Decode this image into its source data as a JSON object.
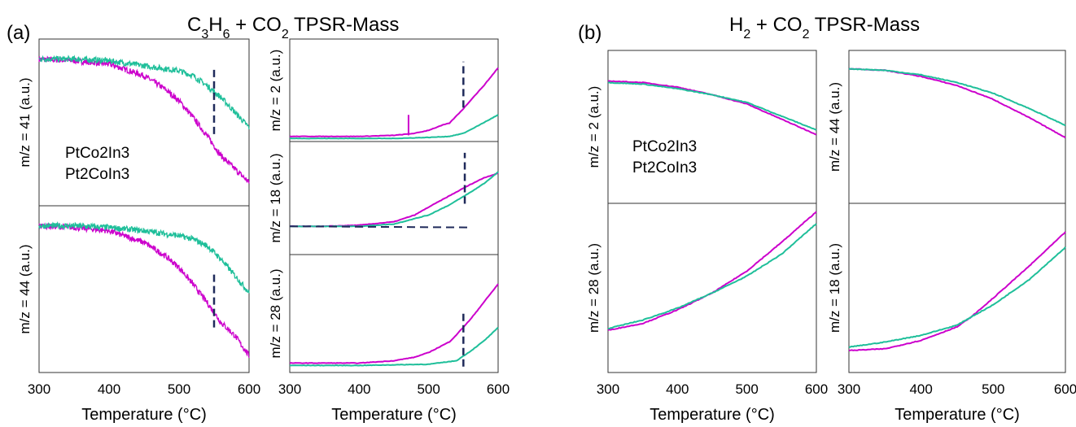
{
  "panels": {
    "a": {
      "letter": "(a)",
      "title_main": "C",
      "title_sub1": "3",
      "title_mid1": "H",
      "title_sub2": "6",
      "title_mid2": " + CO",
      "title_sub3": "2",
      "title_end": " TPSR-Mass"
    },
    "b": {
      "letter": "(b)",
      "title_main": "H",
      "title_sub1": "2",
      "title_mid": " + CO",
      "title_sub2": "2",
      "title_end": " TPSR-Mass"
    }
  },
  "colors": {
    "PtCo2In3": "#cc00cc",
    "Pt2CoIn3": "#1fbf9a",
    "marker": "#1f2a5a"
  },
  "chart_data": [
    {
      "id": "a-41",
      "type": "line",
      "ylabel": "m/z = 41 (a.u.)",
      "xlim": [
        300,
        600
      ],
      "ylim": [
        0,
        1
      ],
      "show_xticks": false,
      "xlabel": "",
      "legend": [
        "PtCo2In3",
        "Pt2CoIn3"
      ],
      "series": [
        {
          "name": "PtCo2In3",
          "x": [
            300,
            350,
            400,
            450,
            480,
            500,
            520,
            540,
            560,
            580,
            600
          ],
          "y": [
            0.88,
            0.87,
            0.85,
            0.78,
            0.7,
            0.63,
            0.53,
            0.42,
            0.3,
            0.22,
            0.14
          ]
        },
        {
          "name": "Pt2CoIn3",
          "x": [
            300,
            350,
            400,
            450,
            500,
            520,
            540,
            560,
            580,
            600
          ],
          "y": [
            0.88,
            0.88,
            0.87,
            0.84,
            0.81,
            0.78,
            0.72,
            0.65,
            0.56,
            0.47
          ]
        }
      ],
      "vline": {
        "x": 550,
        "y": [
          0.43,
          0.83
        ]
      }
    },
    {
      "id": "a-44",
      "type": "line",
      "ylabel": "m/z = 44 (a.u.)",
      "xlim": [
        300,
        600
      ],
      "ylim": [
        0,
        1
      ],
      "show_xticks": true,
      "xticks": [
        300,
        400,
        500,
        600
      ],
      "xlabel": "Temperature (°C)",
      "series": [
        {
          "name": "PtCo2In3",
          "x": [
            300,
            350,
            400,
            450,
            480,
            500,
            520,
            540,
            560,
            580,
            600
          ],
          "y": [
            0.88,
            0.87,
            0.85,
            0.78,
            0.7,
            0.63,
            0.53,
            0.42,
            0.3,
            0.22,
            0.1
          ]
        },
        {
          "name": "Pt2CoIn3",
          "x": [
            300,
            350,
            400,
            450,
            500,
            520,
            540,
            560,
            580,
            600
          ],
          "y": [
            0.88,
            0.88,
            0.87,
            0.85,
            0.82,
            0.8,
            0.76,
            0.68,
            0.58,
            0.48
          ]
        }
      ],
      "vline": {
        "x": 550,
        "y": [
          0.27,
          0.6
        ]
      }
    },
    {
      "id": "a-2",
      "type": "line",
      "ylabel": "m/z = 2 (a.u.)",
      "xlim": [
        300,
        600
      ],
      "ylim": [
        0,
        1
      ],
      "show_xticks": false,
      "xlabel": "",
      "series": [
        {
          "name": "PtCo2In3",
          "x": [
            300,
            350,
            400,
            450,
            480,
            500,
            520,
            530,
            540,
            550,
            560,
            580,
            600
          ],
          "y": [
            0.05,
            0.05,
            0.05,
            0.06,
            0.08,
            0.11,
            0.16,
            0.18,
            0.25,
            0.32,
            0.4,
            0.55,
            0.72
          ]
        },
        {
          "name": "Pt2CoIn3",
          "x": [
            300,
            400,
            450,
            500,
            530,
            550,
            570,
            600
          ],
          "y": [
            0.03,
            0.03,
            0.03,
            0.04,
            0.05,
            0.08,
            0.15,
            0.26
          ]
        }
      ],
      "spike": {
        "x": 471,
        "y": [
          0.06,
          0.26
        ]
      },
      "vline": {
        "x": 550,
        "y": [
          0.33,
          0.78
        ]
      }
    },
    {
      "id": "a-18",
      "type": "line",
      "ylabel": "m/z = 18 (a.u.)",
      "xlim": [
        300,
        600
      ],
      "ylim": [
        0,
        1
      ],
      "show_xticks": false,
      "xlabel": "",
      "series": [
        {
          "name": "PtCo2In3",
          "x": [
            300,
            350,
            400,
            450,
            480,
            500,
            530,
            560,
            580,
            600
          ],
          "y": [
            0.25,
            0.25,
            0.26,
            0.29,
            0.35,
            0.42,
            0.52,
            0.62,
            0.68,
            0.72
          ]
        },
        {
          "name": "Pt2CoIn3",
          "x": [
            300,
            350,
            400,
            450,
            500,
            530,
            560,
            580,
            600
          ],
          "y": [
            0.25,
            0.25,
            0.25,
            0.27,
            0.35,
            0.44,
            0.55,
            0.63,
            0.73
          ]
        }
      ],
      "baseline": {
        "x": [
          300,
          560
        ],
        "y": [
          0.25,
          0.24
        ]
      },
      "vline": {
        "x": 552,
        "y": [
          0.45,
          0.9
        ]
      }
    },
    {
      "id": "a-28",
      "type": "line",
      "ylabel": "m/z = 28 (a.u.)",
      "xlim": [
        300,
        600
      ],
      "ylim": [
        0,
        1
      ],
      "show_xticks": true,
      "xticks": [
        300,
        400,
        500,
        600
      ],
      "xlabel": "Temperature (°C)",
      "series": [
        {
          "name": "PtCo2In3",
          "x": [
            300,
            400,
            450,
            480,
            500,
            520,
            530,
            540,
            560,
            580,
            600
          ],
          "y": [
            0.08,
            0.08,
            0.1,
            0.13,
            0.17,
            0.23,
            0.26,
            0.32,
            0.45,
            0.6,
            0.75
          ]
        },
        {
          "name": "Pt2CoIn3",
          "x": [
            300,
            400,
            500,
            540,
            560,
            580,
            600
          ],
          "y": [
            0.06,
            0.06,
            0.07,
            0.1,
            0.18,
            0.27,
            0.38
          ]
        }
      ],
      "vline": {
        "x": 550,
        "y": [
          0.05,
          0.52
        ]
      }
    },
    {
      "id": "b-2",
      "type": "line",
      "ylabel": "m/z = 2 (a.u.)",
      "xlim": [
        300,
        600
      ],
      "ylim": [
        0,
        1
      ],
      "show_xticks": false,
      "xlabel": "",
      "legend": [
        "PtCo2In3",
        "Pt2CoIn3"
      ],
      "series": [
        {
          "name": "PtCo2In3",
          "x": [
            300,
            350,
            400,
            450,
            500,
            550,
            600
          ],
          "y": [
            0.8,
            0.79,
            0.76,
            0.71,
            0.65,
            0.55,
            0.45
          ]
        },
        {
          "name": "Pt2CoIn3",
          "x": [
            300,
            350,
            400,
            450,
            500,
            550,
            600
          ],
          "y": [
            0.79,
            0.78,
            0.75,
            0.71,
            0.66,
            0.57,
            0.48
          ]
        }
      ]
    },
    {
      "id": "b-28",
      "type": "line",
      "ylabel": "m/z = 28 (a.u.)",
      "xlim": [
        300,
        600
      ],
      "ylim": [
        0,
        1
      ],
      "show_xticks": true,
      "xticks": [
        300,
        400,
        500,
        600
      ],
      "xlabel": "Temperature (°C)",
      "series": [
        {
          "name": "PtCo2In3",
          "x": [
            300,
            350,
            400,
            450,
            500,
            550,
            600
          ],
          "y": [
            0.25,
            0.29,
            0.37,
            0.47,
            0.6,
            0.77,
            0.95
          ]
        },
        {
          "name": "Pt2CoIn3",
          "x": [
            300,
            350,
            400,
            450,
            500,
            550,
            600
          ],
          "y": [
            0.26,
            0.31,
            0.38,
            0.47,
            0.57,
            0.7,
            0.88
          ]
        }
      ]
    },
    {
      "id": "b-44",
      "type": "line",
      "ylabel": "m/z = 44 (a.u.)",
      "xlim": [
        300,
        600
      ],
      "ylim": [
        0,
        1
      ],
      "show_xticks": false,
      "xlabel": "",
      "series": [
        {
          "name": "PtCo2In3",
          "x": [
            300,
            350,
            400,
            450,
            500,
            550,
            600
          ],
          "y": [
            0.88,
            0.87,
            0.83,
            0.77,
            0.68,
            0.56,
            0.43
          ]
        },
        {
          "name": "Pt2CoIn3",
          "x": [
            300,
            350,
            400,
            450,
            500,
            550,
            600
          ],
          "y": [
            0.88,
            0.87,
            0.84,
            0.79,
            0.72,
            0.62,
            0.51
          ]
        }
      ]
    },
    {
      "id": "b-18",
      "type": "line",
      "ylabel": "m/z = 18 (a.u.)",
      "xlim": [
        300,
        600
      ],
      "ylim": [
        0,
        1
      ],
      "show_xticks": true,
      "xticks": [
        300,
        400,
        500,
        600
      ],
      "xlabel": "Temperature (°C)",
      "series": [
        {
          "name": "PtCo2In3",
          "x": [
            300,
            350,
            400,
            450,
            470,
            500,
            550,
            600
          ],
          "y": [
            0.13,
            0.14,
            0.19,
            0.27,
            0.33,
            0.44,
            0.63,
            0.83
          ]
        },
        {
          "name": "Pt2CoIn3",
          "x": [
            300,
            350,
            400,
            450,
            470,
            500,
            550,
            600
          ],
          "y": [
            0.15,
            0.18,
            0.22,
            0.28,
            0.33,
            0.4,
            0.55,
            0.74
          ]
        }
      ]
    }
  ]
}
